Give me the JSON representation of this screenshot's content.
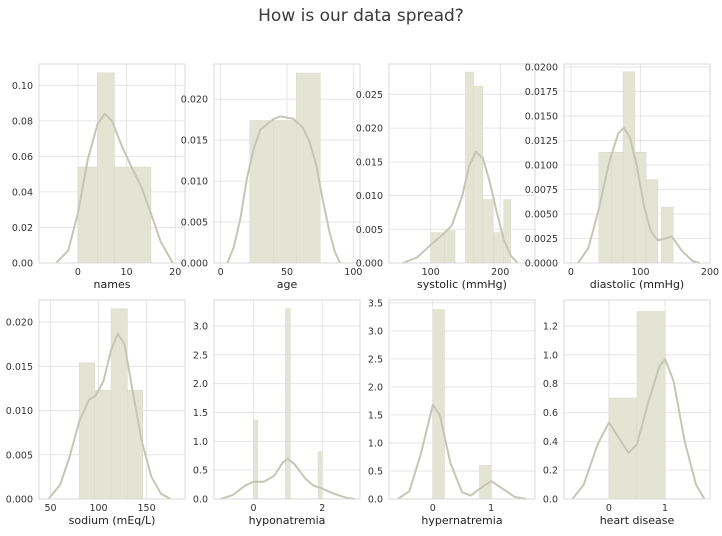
{
  "title": "How is our data spread?",
  "colors": {
    "bar": "#e3e4d4",
    "kde": "#c5c7b6",
    "grid": "#e6e6e6",
    "spine": "#d8d8d8",
    "tick_text": "#333333"
  },
  "chart_data": [
    {
      "type": "bar",
      "subtype": "histogram-with-kde",
      "xlabel": "names",
      "xlim": [
        -8,
        22
      ],
      "ylim": [
        0,
        0.112
      ],
      "xticks": [
        0,
        10,
        20
      ],
      "yticks": [
        0.0,
        0.02,
        0.04,
        0.06,
        0.08,
        0.1
      ],
      "ytick_labels": [
        "0.00",
        "0.02",
        "0.04",
        "0.06",
        "0.08",
        "0.10"
      ],
      "bins": [
        [
          0,
          4,
          0.054
        ],
        [
          4,
          7.5,
          0.107
        ],
        [
          7.5,
          15,
          0.054
        ]
      ],
      "kde": [
        [
          -4.5,
          0.0
        ],
        [
          -2,
          0.007
        ],
        [
          0,
          0.028
        ],
        [
          2,
          0.058
        ],
        [
          4,
          0.078
        ],
        [
          5.5,
          0.084
        ],
        [
          7,
          0.08
        ],
        [
          9,
          0.066
        ],
        [
          11,
          0.054
        ],
        [
          13,
          0.043
        ],
        [
          15,
          0.028
        ],
        [
          17,
          0.012
        ],
        [
          19.5,
          0.0
        ]
      ]
    },
    {
      "type": "bar",
      "subtype": "histogram-with-kde",
      "xlabel": "age",
      "xlim": [
        -5,
        105
      ],
      "ylim": [
        0,
        0.0243
      ],
      "xticks": [
        0,
        50,
        100
      ],
      "yticks": [
        0.0,
        0.005,
        0.01,
        0.015,
        0.02
      ],
      "ytick_labels": [
        "0.000",
        "0.005",
        "0.010",
        "0.015",
        "0.020"
      ],
      "bins": [
        [
          22,
          40,
          0.0174
        ],
        [
          40,
          57,
          0.0174
        ],
        [
          57,
          75,
          0.0232
        ]
      ],
      "kde": [
        [
          5,
          0.0
        ],
        [
          10,
          0.002
        ],
        [
          15,
          0.0055
        ],
        [
          20,
          0.0105
        ],
        [
          25,
          0.014
        ],
        [
          30,
          0.0163
        ],
        [
          40,
          0.0176
        ],
        [
          45,
          0.0179
        ],
        [
          55,
          0.0176
        ],
        [
          62,
          0.0165
        ],
        [
          67,
          0.0148
        ],
        [
          72,
          0.012
        ],
        [
          77,
          0.0077
        ],
        [
          82,
          0.0038
        ],
        [
          86,
          0.0014
        ],
        [
          90,
          0.0
        ]
      ]
    },
    {
      "type": "bar",
      "subtype": "histogram-with-kde",
      "xlabel": "systolic (mmHg)",
      "xlim": [
        40,
        250
      ],
      "ylim": [
        0,
        0.0295
      ],
      "xticks": [
        100,
        200
      ],
      "yticks": [
        0.0,
        0.005,
        0.01,
        0.015,
        0.02,
        0.025
      ],
      "ytick_labels": [
        "0.000",
        "0.005",
        "0.010",
        "0.015",
        "0.020",
        "0.025"
      ],
      "bins": [
        [
          100,
          120,
          0.0045
        ],
        [
          120,
          135,
          0.0048
        ],
        [
          150,
          162,
          0.0283
        ],
        [
          162,
          175,
          0.0262
        ],
        [
          175,
          190,
          0.0094
        ],
        [
          190,
          205,
          0.0045
        ],
        [
          205,
          215,
          0.0094
        ]
      ],
      "kde": [
        [
          60,
          0.0
        ],
        [
          80,
          0.0008
        ],
        [
          100,
          0.0027
        ],
        [
          115,
          0.004
        ],
        [
          130,
          0.0055
        ],
        [
          145,
          0.0098
        ],
        [
          155,
          0.0143
        ],
        [
          165,
          0.0165
        ],
        [
          175,
          0.0155
        ],
        [
          185,
          0.012
        ],
        [
          195,
          0.0075
        ],
        [
          205,
          0.0035
        ],
        [
          215,
          0.0011
        ],
        [
          225,
          0.0
        ]
      ]
    },
    {
      "type": "bar",
      "subtype": "histogram-with-kde",
      "xlabel": "diastolic (mmHg)",
      "xlim": [
        -10,
        200
      ],
      "ylim": [
        0,
        0.0203
      ],
      "xticks": [
        0,
        100,
        200
      ],
      "yticks": [
        0.0,
        0.0025,
        0.005,
        0.0075,
        0.01,
        0.0125,
        0.015,
        0.0175,
        0.02
      ],
      "ytick_labels": [
        "0.0000",
        "0.0025",
        "0.0050",
        "0.0075",
        "0.0100",
        "0.0125",
        "0.0150",
        "0.0175",
        "0.0200"
      ],
      "bins": [
        [
          40,
          58,
          0.0113
        ],
        [
          58,
          75,
          0.0113
        ],
        [
          75,
          92,
          0.0195
        ],
        [
          92,
          108,
          0.0113
        ],
        [
          108,
          125,
          0.0085
        ],
        [
          130,
          147,
          0.0057
        ]
      ],
      "kde": [
        [
          10,
          0.0
        ],
        [
          25,
          0.0015
        ],
        [
          40,
          0.0055
        ],
        [
          55,
          0.0103
        ],
        [
          68,
          0.0132
        ],
        [
          76,
          0.0138
        ],
        [
          85,
          0.0128
        ],
        [
          95,
          0.0098
        ],
        [
          105,
          0.0058
        ],
        [
          115,
          0.0032
        ],
        [
          125,
          0.0023
        ],
        [
          135,
          0.0025
        ],
        [
          145,
          0.0027
        ],
        [
          160,
          0.0012
        ],
        [
          175,
          0.0002
        ],
        [
          185,
          0.0
        ]
      ]
    },
    {
      "type": "bar",
      "subtype": "histogram-with-kde",
      "xlabel": "sodium (mEq/L)",
      "xlim": [
        38,
        190
      ],
      "ylim": [
        0,
        0.0225
      ],
      "xticks": [
        50,
        100,
        150
      ],
      "yticks": [
        0.0,
        0.005,
        0.01,
        0.015,
        0.02
      ],
      "ytick_labels": [
        "0.000",
        "0.005",
        "0.010",
        "0.015",
        "0.020"
      ],
      "bins": [
        [
          80,
          96,
          0.0154
        ],
        [
          96,
          113,
          0.0123
        ],
        [
          113,
          130,
          0.0215
        ],
        [
          130,
          146,
          0.0123
        ]
      ],
      "kde": [
        [
          48,
          0.0
        ],
        [
          60,
          0.0016
        ],
        [
          70,
          0.0048
        ],
        [
          80,
          0.0088
        ],
        [
          90,
          0.0112
        ],
        [
          97,
          0.0117
        ],
        [
          105,
          0.0133
        ],
        [
          113,
          0.0168
        ],
        [
          120,
          0.0187
        ],
        [
          127,
          0.0175
        ],
        [
          135,
          0.0125
        ],
        [
          145,
          0.0065
        ],
        [
          155,
          0.0025
        ],
        [
          165,
          0.0006
        ],
        [
          175,
          0.0
        ]
      ]
    },
    {
      "type": "bar",
      "subtype": "histogram-with-kde",
      "xlabel": "hyponatremia",
      "xlim": [
        -1.15,
        3.1
      ],
      "ylim": [
        0,
        3.45
      ],
      "xticks": [
        0,
        2
      ],
      "yticks": [
        0.0,
        0.5,
        1.0,
        1.5,
        2.0,
        2.5,
        3.0
      ],
      "ytick_labels": [
        "0.0",
        "0.5",
        "1.0",
        "1.5",
        "2.0",
        "2.5",
        "3.0"
      ],
      "bins": [
        [
          0,
          0.12,
          1.37
        ],
        [
          0.93,
          1.07,
          3.3
        ],
        [
          1.88,
          2.0,
          0.82
        ]
      ],
      "kde": [
        [
          -0.95,
          0.0
        ],
        [
          -0.6,
          0.07
        ],
        [
          -0.25,
          0.23
        ],
        [
          0,
          0.3
        ],
        [
          0.3,
          0.3
        ],
        [
          0.6,
          0.4
        ],
        [
          0.85,
          0.63
        ],
        [
          1.0,
          0.7
        ],
        [
          1.2,
          0.6
        ],
        [
          1.5,
          0.36
        ],
        [
          1.75,
          0.23
        ],
        [
          2.0,
          0.18
        ],
        [
          2.3,
          0.1
        ],
        [
          2.7,
          0.02
        ],
        [
          2.95,
          0.0
        ]
      ]
    },
    {
      "type": "bar",
      "subtype": "histogram-with-kde",
      "xlabel": "hypernatremia",
      "xlim": [
        -0.75,
        1.75
      ],
      "ylim": [
        0,
        3.55
      ],
      "xticks": [
        0,
        1
      ],
      "yticks": [
        0.0,
        0.5,
        1.0,
        1.5,
        2.0,
        2.5,
        3.0,
        3.5
      ],
      "ytick_labels": [
        "0.0",
        "0.5",
        "1.0",
        "1.5",
        "2.0",
        "2.5",
        "3.0",
        "3.5"
      ],
      "bins": [
        [
          0.0,
          0.2,
          3.38
        ],
        [
          0.8,
          1.0,
          0.6
        ]
      ],
      "kde": [
        [
          -0.6,
          0.0
        ],
        [
          -0.4,
          0.14
        ],
        [
          -0.2,
          0.82
        ],
        [
          0,
          1.68
        ],
        [
          0.12,
          1.5
        ],
        [
          0.3,
          0.65
        ],
        [
          0.5,
          0.12
        ],
        [
          0.65,
          0.06
        ],
        [
          0.8,
          0.18
        ],
        [
          1.0,
          0.32
        ],
        [
          1.2,
          0.18
        ],
        [
          1.4,
          0.04
        ],
        [
          1.6,
          0.0
        ]
      ]
    },
    {
      "type": "bar",
      "subtype": "histogram-with-kde",
      "xlabel": "heart disease",
      "xlim": [
        -0.8,
        1.8
      ],
      "ylim": [
        0,
        1.38
      ],
      "xticks": [
        0,
        1
      ],
      "yticks": [
        0.0,
        0.2,
        0.4,
        0.6,
        0.8,
        1.0,
        1.2
      ],
      "ytick_labels": [
        "0.0",
        "0.2",
        "0.4",
        "0.6",
        "0.8",
        "1.0",
        "1.2"
      ],
      "bins": [
        [
          0.0,
          0.5,
          0.7
        ],
        [
          0.5,
          1.0,
          1.3
        ]
      ],
      "kde": [
        [
          -0.65,
          0.0
        ],
        [
          -0.45,
          0.1
        ],
        [
          -0.2,
          0.38
        ],
        [
          0,
          0.53
        ],
        [
          0.15,
          0.44
        ],
        [
          0.35,
          0.32
        ],
        [
          0.5,
          0.38
        ],
        [
          0.7,
          0.67
        ],
        [
          0.9,
          0.92
        ],
        [
          1.0,
          0.97
        ],
        [
          1.15,
          0.82
        ],
        [
          1.35,
          0.4
        ],
        [
          1.55,
          0.1
        ],
        [
          1.7,
          0.0
        ]
      ]
    }
  ]
}
